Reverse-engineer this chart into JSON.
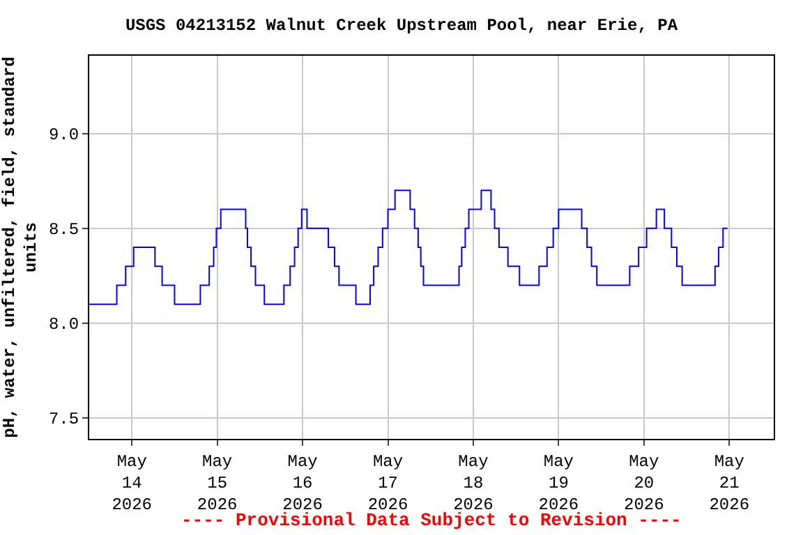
{
  "chart_data": {
    "type": "step",
    "title": "USGS 04213152 Walnut Creek Upstream Pool, near Erie, PA",
    "ylabel": "pH, water, unfiltered, field, standard\nunits",
    "annotations": [
      "---- Provisional Data Subject to Revision ----"
    ],
    "x": [
      "2026-05-13T12:00",
      "2026-05-13T19:45",
      "2026-05-13T22:15",
      "2026-05-14T00:30",
      "2026-05-14T06:30",
      "2026-05-14T08:30",
      "2026-05-14T12:00",
      "2026-05-14T19:15",
      "2026-05-14T21:45",
      "2026-05-14T23:00",
      "2026-05-14T23:45",
      "2026-05-15T01:00",
      "2026-05-15T08:00",
      "2026-05-15T08:30",
      "2026-05-15T09:30",
      "2026-05-15T10:45",
      "2026-05-15T13:15",
      "2026-05-15T18:45",
      "2026-05-15T20:30",
      "2026-05-15T21:45",
      "2026-05-15T22:45",
      "2026-05-15T23:45",
      "2026-05-16T01:15",
      "2026-05-16T07:15",
      "2026-05-16T09:00",
      "2026-05-16T10:15",
      "2026-05-16T15:00",
      "2026-05-16T19:00",
      "2026-05-16T20:00",
      "2026-05-16T21:15",
      "2026-05-16T22:30",
      "2026-05-17T00:00",
      "2026-05-17T02:00",
      "2026-05-17T06:15",
      "2026-05-17T07:30",
      "2026-05-17T08:30",
      "2026-05-17T09:15",
      "2026-05-17T10:00",
      "2026-05-17T20:00",
      "2026-05-17T20:45",
      "2026-05-17T21:45",
      "2026-05-17T22:45",
      "2026-05-18T00:15",
      "2026-05-18T02:15",
      "2026-05-18T05:00",
      "2026-05-18T06:00",
      "2026-05-18T07:15",
      "2026-05-18T08:15",
      "2026-05-18T09:45",
      "2026-05-18T13:00",
      "2026-05-18T18:30",
      "2026-05-18T20:45",
      "2026-05-18T22:30",
      "2026-05-19T00:00",
      "2026-05-19T06:30",
      "2026-05-19T08:00",
      "2026-05-19T09:15",
      "2026-05-19T10:45",
      "2026-05-19T20:00",
      "2026-05-19T22:30",
      "2026-05-20T00:45",
      "2026-05-20T03:30",
      "2026-05-20T05:45",
      "2026-05-20T07:45",
      "2026-05-20T09:15",
      "2026-05-20T10:45",
      "2026-05-20T20:00",
      "2026-05-20T21:00",
      "2026-05-20T22:15",
      "2026-05-20T23:30"
    ],
    "series": [
      {
        "color": "#0000ff",
        "values": [
          8.1,
          8.2,
          8.3,
          8.4,
          8.3,
          8.2,
          8.1,
          8.2,
          8.3,
          8.4,
          8.5,
          8.6,
          8.5,
          8.4,
          8.3,
          8.2,
          8.1,
          8.2,
          8.3,
          8.4,
          8.5,
          8.6,
          8.5,
          8.4,
          8.3,
          8.2,
          8.1,
          8.2,
          8.3,
          8.4,
          8.5,
          8.6,
          8.7,
          8.6,
          8.5,
          8.4,
          8.3,
          8.2,
          8.3,
          8.4,
          8.5,
          8.6,
          8.6,
          8.7,
          8.6,
          8.5,
          8.4,
          8.4,
          8.3,
          8.2,
          8.3,
          8.4,
          8.5,
          8.6,
          8.5,
          8.4,
          8.3,
          8.2,
          8.3,
          8.4,
          8.5,
          8.6,
          8.5,
          8.4,
          8.3,
          8.2,
          8.3,
          8.4,
          8.5,
          8.5
        ]
      }
    ],
    "xlim": [
      "2026-05-13T12:00",
      "2026-05-21T12:30"
    ],
    "xticks": [
      {
        "value": "2026-05-14",
        "label": "May\n14\n2026"
      },
      {
        "value": "2026-05-15",
        "label": "May\n15\n2026"
      },
      {
        "value": "2026-05-16",
        "label": "May\n16\n2026"
      },
      {
        "value": "2026-05-17",
        "label": "May\n17\n2026"
      },
      {
        "value": "2026-05-18",
        "label": "May\n18\n2026"
      },
      {
        "value": "2026-05-19",
        "label": "May\n19\n2026"
      },
      {
        "value": "2026-05-20",
        "label": "May\n20\n2026"
      },
      {
        "value": "2026-05-21",
        "label": "May\n21\n2026"
      }
    ],
    "ylim": [
      7.39,
      9.41
    ],
    "yticks": [
      {
        "value": 7.5,
        "label": "7.5"
      },
      {
        "value": 8,
        "label": "8.0"
      },
      {
        "value": 8.5,
        "label": "8.5"
      },
      {
        "value": 9,
        "label": "9.0"
      }
    ],
    "grid": true,
    "line_style": "solid",
    "marker": "none"
  }
}
